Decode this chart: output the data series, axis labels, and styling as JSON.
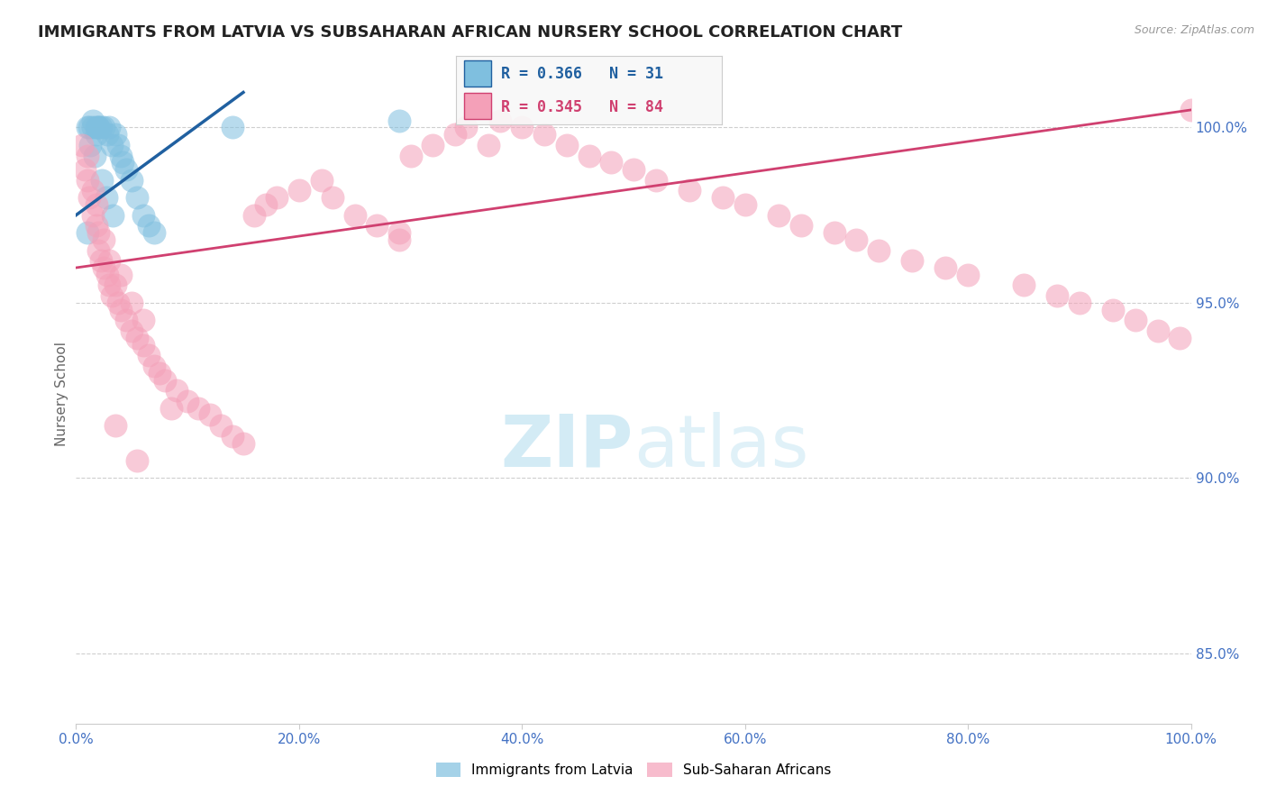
{
  "title": "IMMIGRANTS FROM LATVIA VS SUBSAHARAN AFRICAN NURSERY SCHOOL CORRELATION CHART",
  "source": "Source: ZipAtlas.com",
  "ylabel": "Nursery School",
  "legend_label_1": "Immigrants from Latvia",
  "legend_label_2": "Sub-Saharan Africans",
  "r1": 0.366,
  "n1": 31,
  "r2": 0.345,
  "n2": 84,
  "xlim": [
    0.0,
    100.0
  ],
  "ylim": [
    83.0,
    101.8
  ],
  "yticks": [
    85.0,
    90.0,
    95.0,
    100.0
  ],
  "color_blue": "#7fbfdf",
  "color_pink": "#f4a0b8",
  "color_blue_line": "#2060a0",
  "color_pink_line": "#d04070",
  "blue_x": [
    1.0,
    1.2,
    1.5,
    1.5,
    1.8,
    1.8,
    2.0,
    2.0,
    2.2,
    2.5,
    2.8,
    3.0,
    3.2,
    3.5,
    3.8,
    4.0,
    4.2,
    4.5,
    5.0,
    5.5,
    6.0,
    6.5,
    7.0,
    1.3,
    1.7,
    2.3,
    2.7,
    3.3,
    14.0,
    29.0,
    1.0
  ],
  "blue_y": [
    100.0,
    100.0,
    100.2,
    100.0,
    100.0,
    99.8,
    100.0,
    100.0,
    100.0,
    100.0,
    99.8,
    100.0,
    99.5,
    99.8,
    99.5,
    99.2,
    99.0,
    98.8,
    98.5,
    98.0,
    97.5,
    97.2,
    97.0,
    99.5,
    99.2,
    98.5,
    98.0,
    97.5,
    100.0,
    100.2,
    97.0
  ],
  "pink_x": [
    0.5,
    0.8,
    1.0,
    1.0,
    1.2,
    1.5,
    1.5,
    1.8,
    1.8,
    2.0,
    2.0,
    2.2,
    2.5,
    2.5,
    2.8,
    3.0,
    3.0,
    3.2,
    3.5,
    3.8,
    4.0,
    4.0,
    4.5,
    5.0,
    5.0,
    5.5,
    6.0,
    6.0,
    6.5,
    7.0,
    7.5,
    8.0,
    9.0,
    10.0,
    11.0,
    12.0,
    13.0,
    14.0,
    15.0,
    16.0,
    17.0,
    18.0,
    20.0,
    22.0,
    23.0,
    25.0,
    27.0,
    29.0,
    30.0,
    32.0,
    34.0,
    35.0,
    37.0,
    38.0,
    40.0,
    42.0,
    44.0,
    46.0,
    48.0,
    50.0,
    52.0,
    55.0,
    58.0,
    60.0,
    63.0,
    65.0,
    68.0,
    70.0,
    72.0,
    75.0,
    78.0,
    80.0,
    85.0,
    88.0,
    90.0,
    93.0,
    95.0,
    97.0,
    99.0,
    100.0,
    3.5,
    5.5,
    8.5,
    29.0
  ],
  "pink_y": [
    99.5,
    98.8,
    99.2,
    98.5,
    98.0,
    97.5,
    98.2,
    97.8,
    97.2,
    97.0,
    96.5,
    96.2,
    96.8,
    96.0,
    95.8,
    95.5,
    96.2,
    95.2,
    95.5,
    95.0,
    94.8,
    95.8,
    94.5,
    94.2,
    95.0,
    94.0,
    93.8,
    94.5,
    93.5,
    93.2,
    93.0,
    92.8,
    92.5,
    92.2,
    92.0,
    91.8,
    91.5,
    91.2,
    91.0,
    97.5,
    97.8,
    98.0,
    98.2,
    98.5,
    98.0,
    97.5,
    97.2,
    97.0,
    99.2,
    99.5,
    99.8,
    100.0,
    99.5,
    100.2,
    100.0,
    99.8,
    99.5,
    99.2,
    99.0,
    98.8,
    98.5,
    98.2,
    98.0,
    97.8,
    97.5,
    97.2,
    97.0,
    96.8,
    96.5,
    96.2,
    96.0,
    95.8,
    95.5,
    95.2,
    95.0,
    94.8,
    94.5,
    94.2,
    94.0,
    100.5,
    91.5,
    90.5,
    92.0,
    96.8
  ],
  "blue_trend_x": [
    0.0,
    15.0
  ],
  "blue_trend_y": [
    97.5,
    101.0
  ],
  "pink_trend_x": [
    0.0,
    100.0
  ],
  "pink_trend_y": [
    96.0,
    100.5
  ],
  "background_color": "#ffffff",
  "grid_color": "#bbbbbb",
  "title_color": "#222222",
  "axis_label_color": "#666666",
  "tick_color": "#4472c4",
  "watermark_color": "#cce8f4",
  "legend_bg": "#f8f8f8",
  "legend_border": "#cccccc"
}
